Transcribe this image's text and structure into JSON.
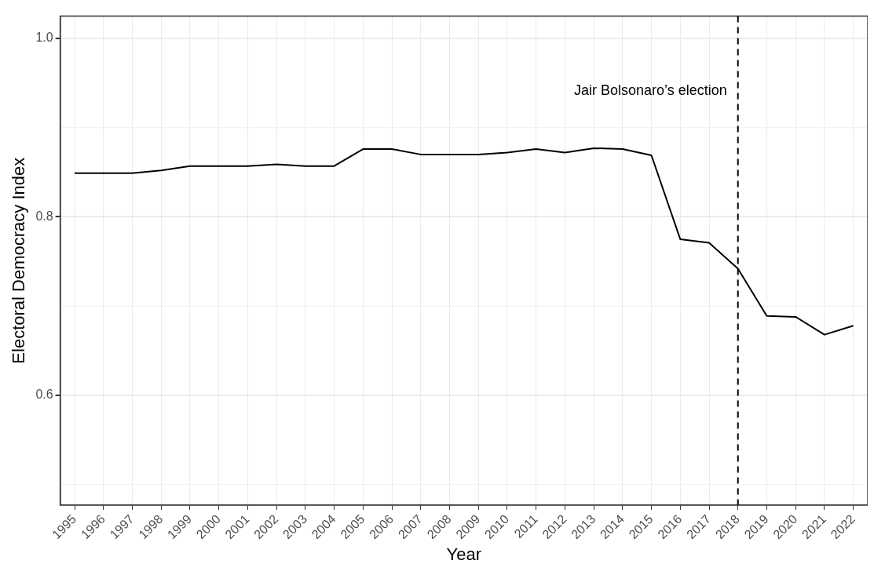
{
  "chart_data": {
    "type": "line",
    "xlabel": "Year",
    "ylabel": "Electoral Democracy Index",
    "categories": [
      "1995",
      "1996",
      "1997",
      "1998",
      "1999",
      "2000",
      "2001",
      "2002",
      "2003",
      "2004",
      "2005",
      "2006",
      "2007",
      "2008",
      "2009",
      "2010",
      "2011",
      "2012",
      "2013",
      "2014",
      "2015",
      "2016",
      "2017",
      "2018",
      "2019",
      "2020",
      "2021",
      "2022"
    ],
    "series": [
      {
        "color": "#000000",
        "values": [
          0.849,
          0.849,
          0.849,
          0.852,
          0.857,
          0.857,
          0.857,
          0.859,
          0.857,
          0.857,
          0.876,
          0.876,
          0.87,
          0.87,
          0.87,
          0.872,
          0.876,
          0.872,
          0.877,
          0.876,
          0.869,
          0.775,
          0.771,
          0.742,
          0.689,
          0.688,
          0.668,
          0.678
        ]
      }
    ],
    "ylim": [
      0.477,
      1.025
    ],
    "yticks": [
      {
        "value": 0.5,
        "label": null
      },
      0.6,
      {
        "value": 0.7,
        "label": null
      },
      0.8,
      {
        "value": 0.9,
        "label": null
      },
      {
        "value": 1,
        "label": "1.0"
      }
    ],
    "grid": true,
    "legend": false,
    "marker": "none",
    "line_style": "solid",
    "ref_lines": [
      {
        "axis": "x",
        "value": "2018",
        "label": "Jair Bolsonaro’s election",
        "color": "#000000",
        "line_style": "dashed"
      }
    ]
  }
}
